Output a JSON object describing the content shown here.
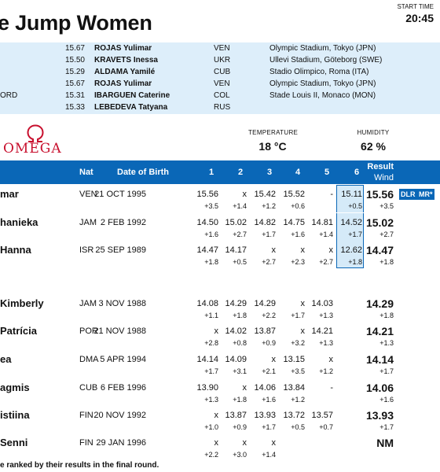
{
  "header": {
    "title": "e Jump Women",
    "start_time_label": "START TIME",
    "start_time": "20:45"
  },
  "records": [
    {
      "code": "",
      "mark": "15.67",
      "name": "ROJAS Yulimar",
      "nat": "VEN",
      "venue": "Olympic Stadium, Tokyo (JPN)"
    },
    {
      "code": "",
      "mark": "15.50",
      "name": "KRAVETS Inessa",
      "nat": "UKR",
      "venue": "Ullevi Stadium, Göteborg (SWE)"
    },
    {
      "code": "",
      "mark": "15.29",
      "name": "ALDAMA Yamilé",
      "nat": "CUB",
      "venue": "Stadio Olimpico, Roma (ITA)"
    },
    {
      "code": "",
      "mark": "15.67",
      "name": "ROJAS Yulimar",
      "nat": "VEN",
      "venue": "Olympic Stadium, Tokyo (JPN)"
    },
    {
      "code": "ORD",
      "mark": "15.31",
      "name": "IBARGUEN Caterine",
      "nat": "COL",
      "venue": "Stade Louis II, Monaco (MON)"
    },
    {
      "code": "",
      "mark": "15.33",
      "name": "LEBEDEVA Tatyana",
      "nat": "RUS",
      "venue": ""
    }
  ],
  "sponsor": {
    "word": "OMEGA",
    "symbol": "Ω",
    "prefix_fragment": "/"
  },
  "conditions": {
    "temperature_label": "TEMPERATURE",
    "temperature": "18 °C",
    "humidity_label": "HUMIDITY",
    "humidity": "62 %"
  },
  "table": {
    "headers": {
      "nat": "Nat",
      "dob": "Date of Birth",
      "a1": "1",
      "a2": "2",
      "a3": "3",
      "a4": "4",
      "a5": "5",
      "a6": "6",
      "result": "Result",
      "wind": "Wind"
    },
    "rows": [
      {
        "name": "mar",
        "nat": "VEN",
        "dob": "21 OCT 1995",
        "marks": [
          "15.56",
          "x",
          "15.42",
          "15.52",
          "-",
          "15.11"
        ],
        "winds": [
          "+3.5",
          "+1.4",
          "+1.2",
          "+0.6",
          "",
          "+0.5"
        ],
        "result": "15.56",
        "result_wind": "+3.5",
        "badges": [
          "DLR",
          "MR*"
        ]
      },
      {
        "name": "hanieka",
        "nat": "JAM",
        "dob": "2 FEB 1992",
        "marks": [
          "14.50",
          "15.02",
          "14.82",
          "14.75",
          "14.81",
          "14.52"
        ],
        "winds": [
          "+1.6",
          "+2.7",
          "+1.7",
          "+1.6",
          "+1.4",
          "+1.7"
        ],
        "result": "15.02",
        "result_wind": "+2.7",
        "badges": []
      },
      {
        "name": "Hanna",
        "nat": "ISR",
        "dob": "25 SEP 1989",
        "marks": [
          "14.47",
          "14.17",
          "x",
          "x",
          "x",
          "12.62"
        ],
        "winds": [
          "+1.8",
          "+0.5",
          "+2.7",
          "+2.3",
          "+2.7",
          "+1.8"
        ],
        "result": "14.47",
        "result_wind": "+1.8",
        "badges": []
      },
      {
        "name": "Kimberly",
        "nat": "JAM",
        "dob": "3 NOV 1988",
        "marks": [
          "14.08",
          "14.29",
          "14.29",
          "x",
          "14.03",
          ""
        ],
        "winds": [
          "+1.1",
          "+1.8",
          "+2.2",
          "+1.7",
          "+1.3",
          ""
        ],
        "result": "14.29",
        "result_wind": "+1.8",
        "badges": []
      },
      {
        "name": "Patrícia",
        "nat": "POR",
        "dob": "21 NOV 1988",
        "marks": [
          "x",
          "14.02",
          "13.87",
          "x",
          "14.21",
          ""
        ],
        "winds": [
          "+2.8",
          "+0.8",
          "+0.9",
          "+3.2",
          "+1.3",
          ""
        ],
        "result": "14.21",
        "result_wind": "+1.3",
        "badges": []
      },
      {
        "name": "ea",
        "nat": "DMA",
        "dob": "5 APR 1994",
        "marks": [
          "14.14",
          "14.09",
          "x",
          "13.15",
          "x",
          ""
        ],
        "winds": [
          "+1.7",
          "+3.1",
          "+2.1",
          "+3.5",
          "+1.2",
          ""
        ],
        "result": "14.14",
        "result_wind": "+1.7",
        "badges": []
      },
      {
        "name": "agmis",
        "nat": "CUB",
        "dob": "6 FEB 1996",
        "marks": [
          "13.90",
          "x",
          "14.06",
          "13.84",
          "-",
          ""
        ],
        "winds": [
          "+1.3",
          "+1.8",
          "+1.6",
          "+1.2",
          "",
          ""
        ],
        "result": "14.06",
        "result_wind": "+1.6",
        "badges": []
      },
      {
        "name": "istiina",
        "nat": "FIN",
        "dob": "20 NOV 1992",
        "marks": [
          "x",
          "13.87",
          "13.93",
          "13.72",
          "13.57",
          ""
        ],
        "winds": [
          "+1.0",
          "+0.9",
          "+1.7",
          "+0.5",
          "+0.7",
          ""
        ],
        "result": "13.93",
        "result_wind": "+1.7",
        "badges": []
      },
      {
        "name": "Senni",
        "nat": "FIN",
        "dob": "29 JAN 1996",
        "marks": [
          "x",
          "x",
          "x",
          "",
          "",
          ""
        ],
        "winds": [
          "+2.2",
          "+3.0",
          "+1.4",
          "",
          "",
          ""
        ],
        "result": "NM",
        "result_wind": "",
        "badges": []
      }
    ]
  },
  "footnote": "e ranked by their results in the final round."
}
